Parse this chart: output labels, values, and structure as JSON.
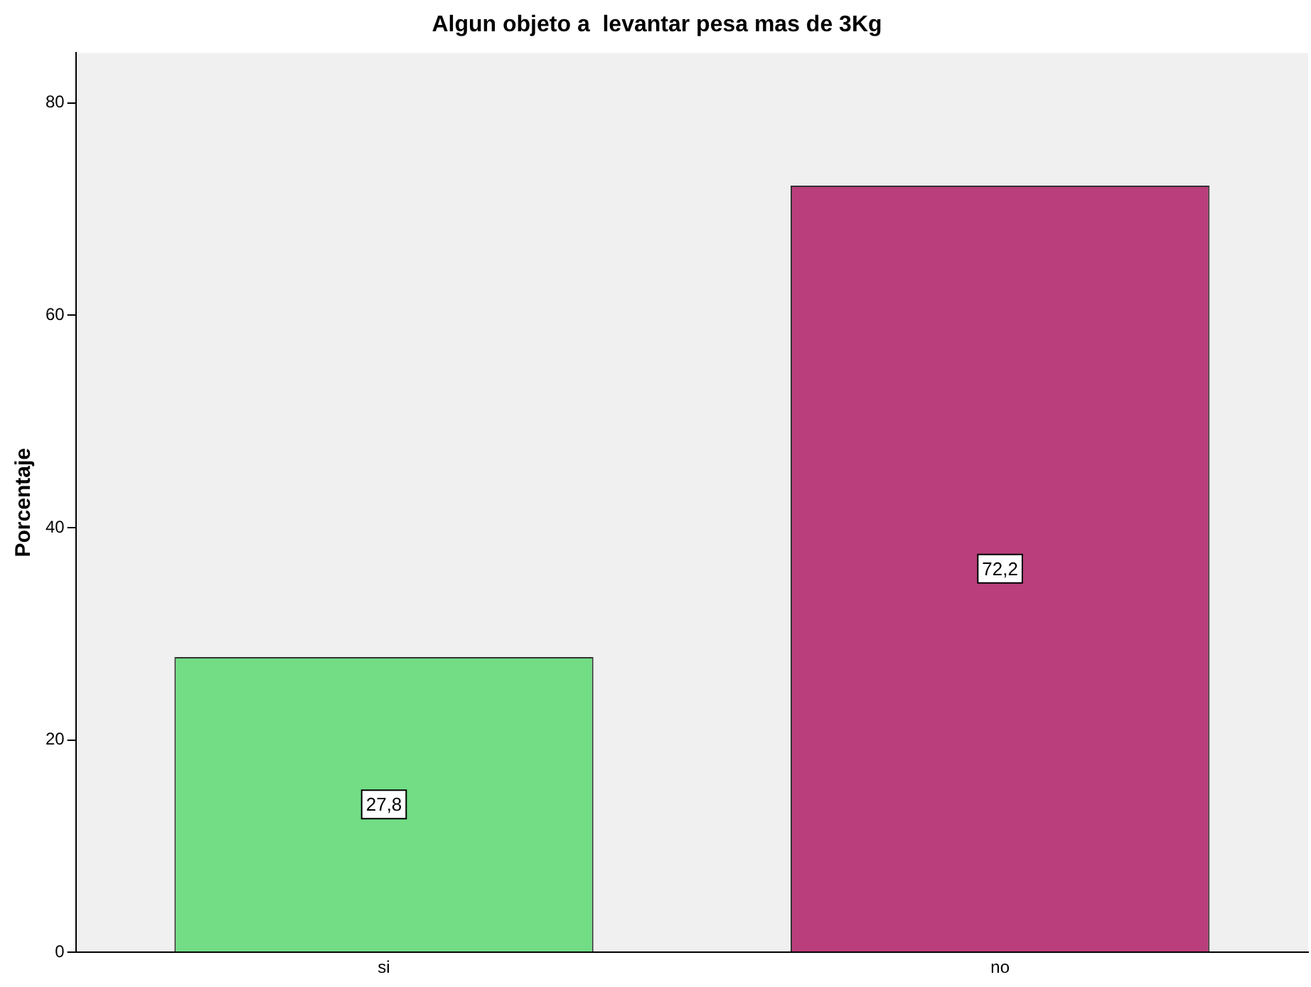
{
  "chart_data": {
    "type": "bar",
    "title": "Algun objeto a  levantar pesa mas de 3Kg",
    "ylabel": "Porcentaje",
    "categories": [
      "si",
      "no"
    ],
    "values": [
      27.8,
      72.2
    ],
    "colors": [
      "#72dd85",
      "#b93e7b"
    ],
    "value_labels": [
      "27,8",
      "72,2"
    ],
    "ylim": [
      0,
      84.7
    ],
    "yticks": [
      0,
      20,
      40,
      60,
      80
    ],
    "grid": false,
    "legend": false
  }
}
